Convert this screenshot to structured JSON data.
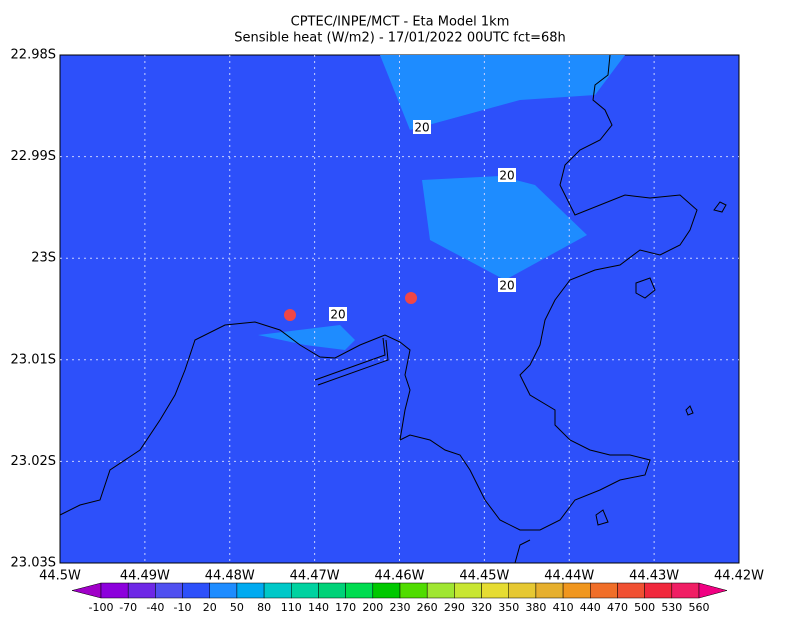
{
  "title_lines": [
    "CPTEC/INPE/MCT -  Eta Model 1km",
    "Sensible heat (W/m2) - 17/01/2022 00UTC fct=68h"
  ],
  "lat_ticks": [
    "22.98S",
    "22.99S",
    "23S",
    "23.01S",
    "23.02S",
    "23.03S"
  ],
  "lon_ticks": [
    "44.5W",
    "44.49W",
    "44.48W",
    "44.47W",
    "44.46W",
    "44.45W",
    "44.44W",
    "44.43W",
    "44.42W"
  ],
  "contour_labels": [
    "20",
    "20",
    "20",
    "20"
  ],
  "colorbar": {
    "labels": [
      "-100",
      "-70",
      "-40",
      "-10",
      "20",
      "50",
      "80",
      "110",
      "140",
      "170",
      "200",
      "230",
      "260",
      "290",
      "320",
      "350",
      "380",
      "410",
      "440",
      "470",
      "500",
      "530",
      "560"
    ],
    "colors": [
      "#a000c8",
      "#8c00dc",
      "#6e28e6",
      "#5050f0",
      "#2d50fa",
      "#1e8cff",
      "#00aaf0",
      "#00c8c8",
      "#00d2a0",
      "#00d278",
      "#00dc50",
      "#00c800",
      "#50dc00",
      "#a0e632",
      "#c8e632",
      "#e6dc32",
      "#e6c832",
      "#e6af2d",
      "#f0961e",
      "#f06e28",
      "#f05032",
      "#f0283c",
      "#f01e64",
      "#f00082"
    ]
  }
}
